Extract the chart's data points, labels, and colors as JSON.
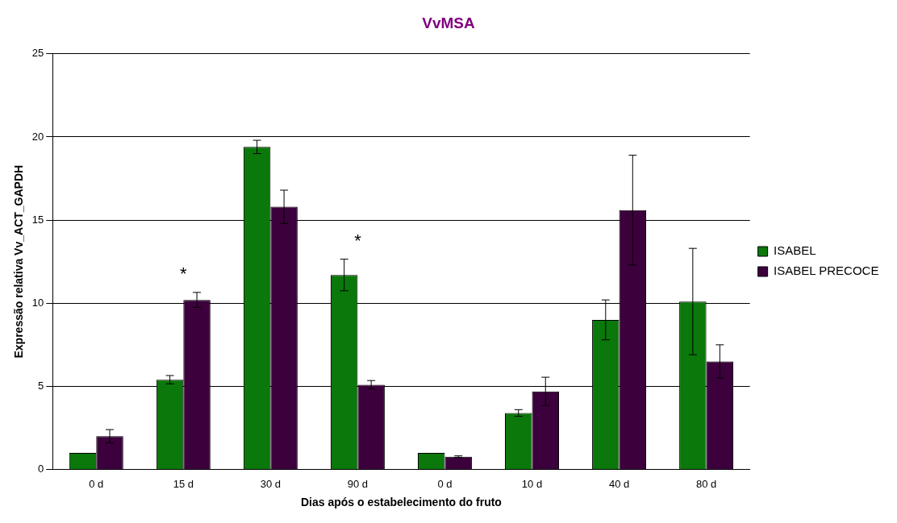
{
  "chart_data": {
    "type": "bar",
    "title": "VvMSA",
    "xlabel": "Dias após o estabelecimento do fruto",
    "ylabel": "Expressão relativa Vv_ACT_GAPDH",
    "categories": [
      "0 d",
      "15 d",
      "30 d",
      "90 d",
      "0 d",
      "10 d",
      "40 d",
      "80 d"
    ],
    "series": [
      {
        "name": "ISABEL",
        "color": "#0a780a",
        "values": [
          1.0,
          5.4,
          19.4,
          11.7,
          1.0,
          3.4,
          9.0,
          10.1
        ],
        "errors": [
          null,
          0.25,
          0.4,
          0.95,
          null,
          0.2,
          1.2,
          3.2
        ]
      },
      {
        "name": "ISABEL PRECOCE",
        "color": "#3c003c",
        "values": [
          2.0,
          10.2,
          15.8,
          5.1,
          0.77,
          4.7,
          15.6,
          6.5
        ],
        "errors": [
          0.4,
          0.45,
          1.0,
          0.25,
          0.05,
          0.85,
          3.3,
          1.0
        ]
      }
    ],
    "ylim": [
      0,
      25
    ],
    "yticks": [
      0,
      5,
      10,
      15,
      20,
      25
    ],
    "grid": "y",
    "legend": "right",
    "annotations": [
      {
        "text": "*",
        "x": "15 d",
        "y": 10.2
      },
      {
        "text": "*",
        "x": "90 d",
        "y": 11.7
      }
    ]
  }
}
